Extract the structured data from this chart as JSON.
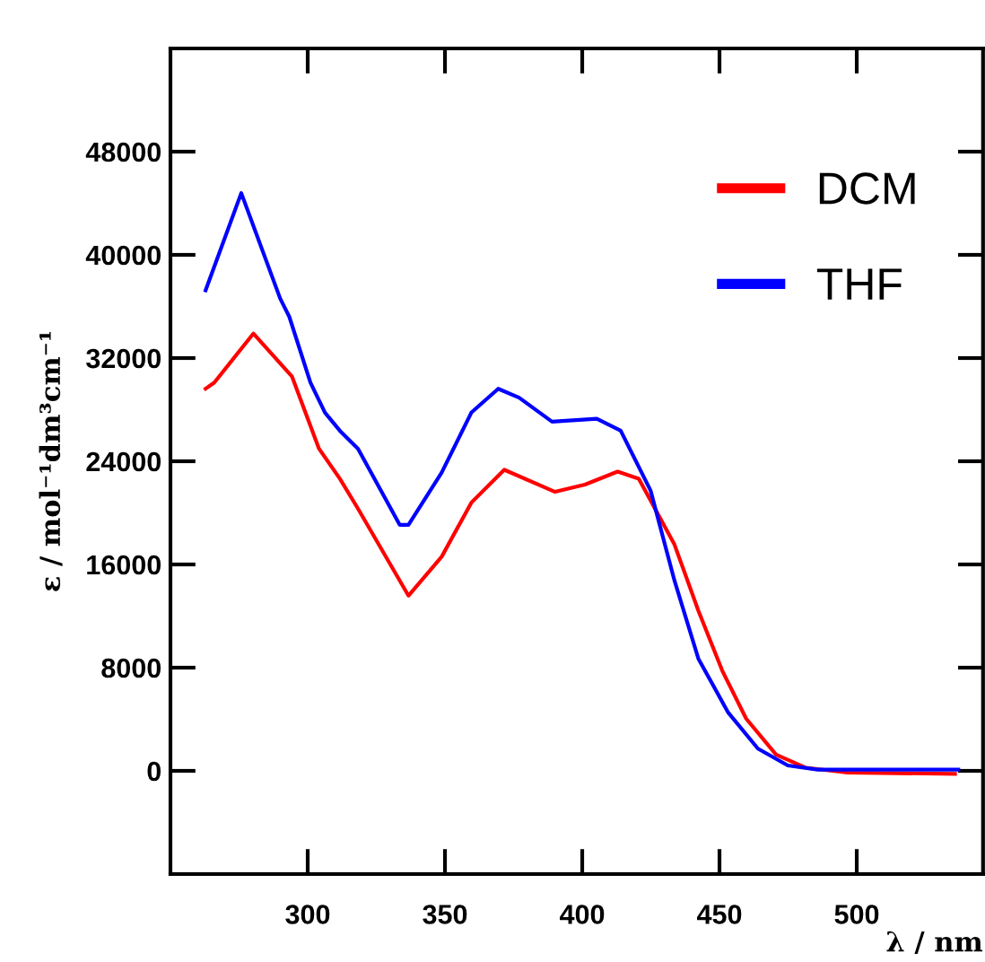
{
  "chart_data": {
    "type": "line",
    "xlabel": "λ / nm",
    "ylabel": "ε / mol⁻¹dm³cm⁻¹",
    "xlim": [
      250,
      546
    ],
    "xticks": [
      300,
      350,
      400,
      450,
      500
    ],
    "ylim": [
      -8000,
      56000
    ],
    "yticks": [
      0,
      8000,
      16000,
      24000,
      32000,
      40000,
      48000
    ],
    "grid": false,
    "legend": "top right",
    "marker": "none",
    "line_style": "solid",
    "series": [
      {
        "name": "DCM",
        "color": "#ff0000",
        "x": [
          262.8,
          266,
          280.2,
          294.3,
          304.1,
          311.7,
          318.3,
          336.7,
          348.8,
          359.6,
          371.6,
          390.1,
          401,
          412.9,
          420.6,
          433.6,
          442.3,
          451,
          459.7,
          470.6,
          481.5,
          496.7,
          535.8
        ],
        "values": [
          29620,
          30100,
          33900,
          30560,
          24980,
          22650,
          20330,
          13580,
          16600,
          20790,
          23340,
          21630,
          22190,
          23200,
          22650,
          17540,
          12420,
          7770,
          4050,
          1260,
          240,
          -140,
          -230
        ]
      },
      {
        "name": "THF",
        "color": "#0000ff",
        "x": [
          262.8,
          275.8,
          290,
          293.3,
          301,
          306.3,
          311.7,
          318.3,
          333.5,
          336.7,
          348.8,
          359.6,
          369.4,
          377,
          389,
          405.3,
          414,
          424.9,
          433.6,
          442.3,
          453.2,
          464,
          474.9,
          485.8,
          537
        ],
        "values": [
          37250,
          44790,
          36600,
          35200,
          30100,
          27770,
          26370,
          24980,
          19070,
          19070,
          23120,
          27770,
          29620,
          28930,
          27070,
          27300,
          26370,
          21730,
          14750,
          8700,
          4510,
          1720,
          420,
          100,
          100
        ]
      }
    ]
  }
}
